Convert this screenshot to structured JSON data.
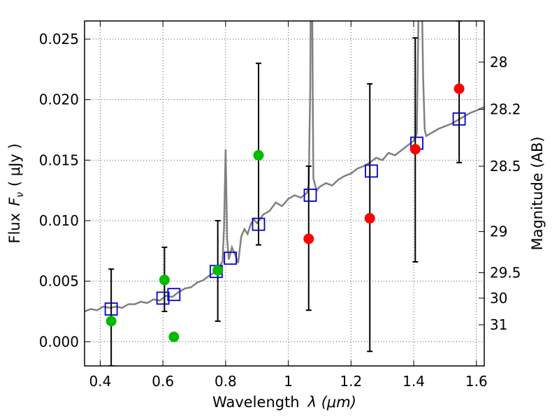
{
  "chart_data": {
    "type": "scatter",
    "xlabel_text": "Wavelength",
    "xlabel_math": "λ (μm)",
    "ylabel_text": "Flux",
    "ylabel_math": "F",
    "ylabel_sub": "ν",
    "ylabel_unit": "( μJy )",
    "y2label": "Magnitude (AB)",
    "xlim": [
      0.35,
      1.625
    ],
    "ylim": [
      -0.002,
      0.0265
    ],
    "grid": true,
    "x_ticks": [
      {
        "value": 0.4,
        "label": "0.4"
      },
      {
        "value": 0.6,
        "label": "0.6"
      },
      {
        "value": 0.8,
        "label": "0.8"
      },
      {
        "value": 1.0,
        "label": "1"
      },
      {
        "value": 1.2,
        "label": "1.2"
      },
      {
        "value": 1.4,
        "label": "1.4"
      },
      {
        "value": 1.6,
        "label": "1.6"
      }
    ],
    "y_ticks": [
      {
        "value": 0.0,
        "label": "0.000"
      },
      {
        "value": 0.005,
        "label": "0.005"
      },
      {
        "value": 0.01,
        "label": "0.010"
      },
      {
        "value": 0.015,
        "label": "0.015"
      },
      {
        "value": 0.02,
        "label": "0.020"
      },
      {
        "value": 0.025,
        "label": "0.025"
      }
    ],
    "y2_ticks": [
      {
        "flux": 0.0231,
        "label": "28"
      },
      {
        "flux": 0.0192,
        "label": "28.2"
      },
      {
        "flux": 0.0145,
        "label": "28.5"
      },
      {
        "flux": 0.0091,
        "label": "29"
      },
      {
        "flux": 0.0057,
        "label": "29.5"
      },
      {
        "flux": 0.0036,
        "label": "30"
      },
      {
        "flux": 0.0014,
        "label": "31"
      }
    ],
    "colors": {
      "model": "#808080",
      "green": "#00bb00",
      "red": "#ff0000",
      "square": "#0000cc",
      "errorbar": "#000000",
      "grid": "#555555"
    },
    "model_spectrum": [
      [
        0.35,
        0.0025
      ],
      [
        0.37,
        0.0027
      ],
      [
        0.39,
        0.0026
      ],
      [
        0.41,
        0.0029
      ],
      [
        0.43,
        0.0028
      ],
      [
        0.45,
        0.0029
      ],
      [
        0.47,
        0.0028
      ],
      [
        0.49,
        0.0031
      ],
      [
        0.51,
        0.0031
      ],
      [
        0.53,
        0.0033
      ],
      [
        0.55,
        0.0032
      ],
      [
        0.57,
        0.0035
      ],
      [
        0.59,
        0.0034
      ],
      [
        0.61,
        0.0038
      ],
      [
        0.63,
        0.0037
      ],
      [
        0.65,
        0.0041
      ],
      [
        0.67,
        0.0044
      ],
      [
        0.69,
        0.0045
      ],
      [
        0.71,
        0.0049
      ],
      [
        0.73,
        0.0051
      ],
      [
        0.75,
        0.0055
      ],
      [
        0.77,
        0.0058
      ],
      [
        0.79,
        0.0066
      ],
      [
        0.795,
        0.0094
      ],
      [
        0.8,
        0.0159
      ],
      [
        0.805,
        0.0085
      ],
      [
        0.81,
        0.0068
      ],
      [
        0.82,
        0.0078
      ],
      [
        0.83,
        0.0072
      ],
      [
        0.84,
        0.0065
      ],
      [
        0.85,
        0.0087
      ],
      [
        0.86,
        0.0093
      ],
      [
        0.87,
        0.0089
      ],
      [
        0.88,
        0.0097
      ],
      [
        0.89,
        0.0101
      ],
      [
        0.9,
        0.0098
      ],
      [
        0.92,
        0.0105
      ],
      [
        0.94,
        0.0108
      ],
      [
        0.96,
        0.0115
      ],
      [
        0.98,
        0.0112
      ],
      [
        1.0,
        0.0118
      ],
      [
        1.02,
        0.0121
      ],
      [
        1.04,
        0.0119
      ],
      [
        1.06,
        0.0123
      ],
      [
        1.065,
        0.013
      ],
      [
        1.07,
        0.021
      ],
      [
        1.072,
        0.03
      ],
      [
        1.076,
        0.03
      ],
      [
        1.078,
        0.02
      ],
      [
        1.08,
        0.0135
      ],
      [
        1.09,
        0.0125
      ],
      [
        1.1,
        0.0128
      ],
      [
        1.12,
        0.0131
      ],
      [
        1.14,
        0.0129
      ],
      [
        1.16,
        0.0134
      ],
      [
        1.18,
        0.0137
      ],
      [
        1.2,
        0.0139
      ],
      [
        1.22,
        0.0143
      ],
      [
        1.24,
        0.0145
      ],
      [
        1.26,
        0.0148
      ],
      [
        1.28,
        0.0152
      ],
      [
        1.3,
        0.015
      ],
      [
        1.32,
        0.0156
      ],
      [
        1.34,
        0.0154
      ],
      [
        1.36,
        0.0158
      ],
      [
        1.38,
        0.0162
      ],
      [
        1.4,
        0.0166
      ],
      [
        1.41,
        0.0172
      ],
      [
        1.415,
        0.0265
      ],
      [
        1.42,
        0.03
      ],
      [
        1.425,
        0.03
      ],
      [
        1.43,
        0.022
      ],
      [
        1.435,
        0.0175
      ],
      [
        1.44,
        0.017
      ],
      [
        1.46,
        0.0173
      ],
      [
        1.48,
        0.0176
      ],
      [
        1.5,
        0.0178
      ],
      [
        1.52,
        0.018
      ],
      [
        1.54,
        0.0183
      ],
      [
        1.56,
        0.0186
      ],
      [
        1.58,
        0.0189
      ],
      [
        1.6,
        0.0191
      ],
      [
        1.625,
        0.0194
      ]
    ],
    "green_points": [
      {
        "x": 0.435,
        "y": 0.0017
      },
      {
        "x": 0.605,
        "y": 0.0051
      },
      {
        "x": 0.635,
        "y": 0.0004
      },
      {
        "x": 0.775,
        "y": 0.0059
      },
      {
        "x": 0.905,
        "y": 0.0154
      }
    ],
    "red_points": [
      {
        "x": 1.065,
        "y": 0.0085
      },
      {
        "x": 1.26,
        "y": 0.0102
      },
      {
        "x": 1.405,
        "y": 0.0159
      },
      {
        "x": 1.545,
        "y": 0.0209
      }
    ],
    "squares": [
      {
        "x": 0.435,
        "y": 0.0027
      },
      {
        "x": 0.6,
        "y": 0.0036
      },
      {
        "x": 0.635,
        "y": 0.0039
      },
      {
        "x": 0.77,
        "y": 0.0058
      },
      {
        "x": 0.815,
        "y": 0.0069
      },
      {
        "x": 0.905,
        "y": 0.0097
      },
      {
        "x": 1.07,
        "y": 0.0121
      },
      {
        "x": 1.265,
        "y": 0.0141
      },
      {
        "x": 1.41,
        "y": 0.0164
      },
      {
        "x": 1.545,
        "y": 0.0184
      }
    ],
    "error_bars": [
      {
        "x": 0.435,
        "low": -0.002,
        "high": 0.006
      },
      {
        "x": 0.605,
        "low": 0.0025,
        "high": 0.0078
      },
      {
        "x": 0.775,
        "low": 0.0017,
        "high": 0.01
      },
      {
        "x": 0.905,
        "low": 0.008,
        "high": 0.023
      },
      {
        "x": 1.065,
        "low": 0.0026,
        "high": 0.0145
      },
      {
        "x": 1.26,
        "low": -0.0008,
        "high": 0.0213
      },
      {
        "x": 1.405,
        "low": 0.0066,
        "high": 0.0251
      },
      {
        "x": 1.545,
        "low": 0.0148,
        "high": 0.0265
      }
    ]
  }
}
